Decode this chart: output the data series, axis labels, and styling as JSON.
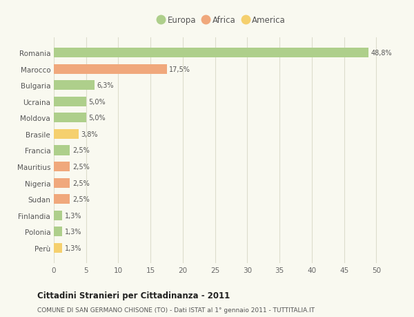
{
  "categories": [
    "Romania",
    "Marocco",
    "Bulgaria",
    "Ucraina",
    "Moldova",
    "Brasile",
    "Francia",
    "Mauritius",
    "Nigeria",
    "Sudan",
    "Finlandia",
    "Polonia",
    "Perù"
  ],
  "values": [
    48.8,
    17.5,
    6.3,
    5.0,
    5.0,
    3.8,
    2.5,
    2.5,
    2.5,
    2.5,
    1.3,
    1.3,
    1.3
  ],
  "labels": [
    "48,8%",
    "17,5%",
    "6,3%",
    "5,0%",
    "5,0%",
    "3,8%",
    "2,5%",
    "2,5%",
    "2,5%",
    "2,5%",
    "1,3%",
    "1,3%",
    "1,3%"
  ],
  "continents": [
    "Europa",
    "Africa",
    "Europa",
    "Europa",
    "Europa",
    "America",
    "Europa",
    "Africa",
    "Africa",
    "Africa",
    "Europa",
    "Europa",
    "America"
  ],
  "colors": {
    "Europa": "#aecf8b",
    "Africa": "#f0a87c",
    "America": "#f5d06e"
  },
  "legend_labels": [
    "Europa",
    "Africa",
    "America"
  ],
  "legend_colors": [
    "#aecf8b",
    "#f0a87c",
    "#f5d06e"
  ],
  "xlim": [
    0,
    52
  ],
  "xticks": [
    0,
    5,
    10,
    15,
    20,
    25,
    30,
    35,
    40,
    45,
    50
  ],
  "title": "Cittadini Stranieri per Cittadinanza - 2011",
  "subtitle": "COMUNE DI SAN GERMANO CHISONE (TO) - Dati ISTAT al 1° gennaio 2011 - TUTTITALIA.IT",
  "background_color": "#f9f9f0",
  "grid_color": "#ddddcc",
  "bar_height": 0.6
}
